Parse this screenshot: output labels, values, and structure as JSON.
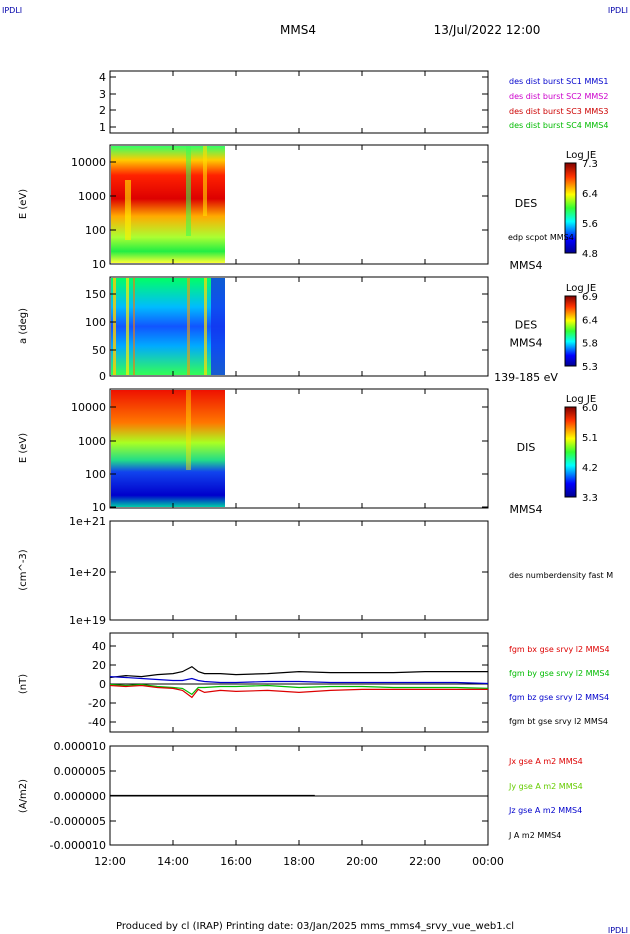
{
  "corner_logo": "IPDLI",
  "header": {
    "spacecraft": "MMS4",
    "datetime": "13/Jul/2022 12:00"
  },
  "footer": {
    "text": "Produced by cl (IRAP)   Printing date: 03/Jan/2025   mms_mms4_srvy_vue_web1.cl"
  },
  "time_axis": {
    "ticks": [
      "12:00",
      "14:00",
      "16:00",
      "18:00",
      "20:00",
      "22:00",
      "00:00"
    ]
  },
  "chart_data": [
    {
      "type": "line",
      "ylim": [
        0.5,
        4.5
      ],
      "yticks": [
        "4",
        "3",
        "2",
        "1"
      ],
      "legend": [
        {
          "name": "des dist burst SC1 MMS1",
          "color": "#0000cc"
        },
        {
          "name": "des dist burst SC2 MMS2",
          "color": "#cc00cc"
        },
        {
          "name": "des dist burst SC3 MMS3",
          "color": "#cc0000"
        },
        {
          "name": "des dist burst SC4 MMS4",
          "color": "#00bb00"
        }
      ]
    },
    {
      "type": "heatmap",
      "ylabel": "E (eV)",
      "yticks": [
        "10000",
        "1000",
        "100",
        "10"
      ],
      "instrument": "DES",
      "trace_label": "edp scpot MMS4",
      "bottom_label": "MMS4",
      "colorbar": {
        "title": "Log JE",
        "ticks": [
          "7.3",
          "6.4",
          "5.6",
          "4.8"
        ]
      }
    },
    {
      "type": "heatmap",
      "ylabel": "a (deg)",
      "yticks": [
        "150",
        "100",
        "50",
        "0"
      ],
      "instrument": "DES",
      "spacecraft": "MMS4",
      "bottom_label": "139-185 eV",
      "colorbar": {
        "title": "Log JE",
        "ticks": [
          "6.9",
          "6.4",
          "5.8",
          "5.3"
        ]
      }
    },
    {
      "type": "heatmap",
      "ylabel": "E (eV)",
      "yticks": [
        "10000",
        "1000",
        "100",
        "10"
      ],
      "instrument": "DIS",
      "bottom_label": "MMS4",
      "colorbar": {
        "title": "Log JE",
        "ticks": [
          "6.0",
          "5.1",
          "4.2",
          "3.3"
        ]
      }
    },
    {
      "type": "line",
      "ylabel": "(cm^-3)",
      "yticks": [
        "1e+21",
        "1e+20",
        "1e+19"
      ],
      "legend": [
        {
          "name": "des numberdensity fast M",
          "color": "#000000"
        }
      ]
    },
    {
      "type": "line",
      "ylabel": "(nT)",
      "ylim": [
        -50,
        50
      ],
      "yticks": [
        "40",
        "20",
        "0",
        "-20",
        "-40"
      ],
      "legend": [
        {
          "name": "fgm bx gse srvy l2 MMS4",
          "color": "#dd0000"
        },
        {
          "name": "fgm by gse srvy l2 MMS4",
          "color": "#00bb00"
        },
        {
          "name": "fgm bz gse srvy l2 MMS4",
          "color": "#0000cc"
        },
        {
          "name": "fgm bt gse srvy l2 MMS4",
          "color": "#000000"
        }
      ],
      "series": [
        {
          "name": "fgm bt gse srvy l2 MMS4",
          "x": [
            12.0,
            12.5,
            13.0,
            13.5,
            14.0,
            14.3,
            14.6,
            14.8,
            15.0,
            15.5,
            16.0,
            17.0,
            18.0,
            19.0,
            20.0,
            21.0,
            22.0,
            23.0,
            24.0
          ],
          "values": [
            5,
            7,
            6,
            8,
            9,
            11,
            16,
            11,
            9,
            9,
            8,
            9,
            11,
            10,
            10,
            10,
            11,
            11,
            11
          ]
        },
        {
          "name": "fgm bz gse srvy l2 MMS4",
          "x": [
            12.0,
            12.5,
            13.0,
            13.5,
            14.0,
            14.3,
            14.6,
            14.8,
            15.0,
            15.5,
            16.0,
            17.0,
            18.0,
            19.0,
            20.0,
            21.0,
            22.0,
            23.0,
            24.0
          ],
          "values": [
            6,
            5,
            4,
            3,
            2,
            2,
            4,
            2,
            1,
            0,
            0,
            1,
            1,
            0,
            0,
            0,
            0,
            0,
            -1
          ]
        },
        {
          "name": "fgm by gse srvy l2 MMS4",
          "x": [
            12.0,
            12.5,
            13.0,
            13.5,
            14.0,
            14.3,
            14.6,
            14.8,
            15.0,
            15.5,
            16.0,
            17.0,
            18.0,
            19.0,
            20.0,
            21.0,
            22.0,
            23.0,
            24.0
          ],
          "values": [
            -2,
            -3,
            -2,
            -4,
            -5,
            -6,
            -12,
            -5,
            -5,
            -4,
            -4,
            -3,
            -5,
            -4,
            -4,
            -5,
            -5,
            -5,
            -6
          ]
        },
        {
          "name": "fgm bx gse srvy l2 MMS4",
          "x": [
            12.0,
            12.5,
            13.0,
            13.5,
            14.0,
            14.3,
            14.6,
            14.8,
            15.0,
            15.5,
            16.0,
            17.0,
            18.0,
            19.0,
            20.0,
            21.0,
            22.0,
            23.0,
            24.0
          ],
          "values": [
            -3,
            -4,
            -3,
            -5,
            -6,
            -8,
            -15,
            -7,
            -10,
            -8,
            -9,
            -8,
            -10,
            -8,
            -7,
            -7,
            -7,
            -7,
            -7
          ]
        }
      ]
    },
    {
      "type": "line",
      "ylabel": "(A/m2)",
      "ylim": [
        -1e-05,
        1e-05
      ],
      "yticks": [
        "0.000010",
        "0.000005",
        "0.000000",
        "-0.000005",
        "-0.000010"
      ],
      "legend": [
        {
          "name": "Jx gse A m2 MMS4",
          "color": "#dd0000"
        },
        {
          "name": "Jy gse A m2 MMS4",
          "color": "#66cc00"
        },
        {
          "name": "Jz gse A m2 MMS4",
          "color": "#0000cc"
        },
        {
          "name": "J A m2 MMS4",
          "color": "#000000"
        }
      ],
      "series": [
        {
          "name": "J A m2 MMS4",
          "x": [
            12.0,
            13.0,
            14.0,
            15.0,
            16.0,
            17.0,
            18.5
          ],
          "values": [
            0,
            0,
            0,
            0,
            0,
            0,
            0
          ]
        }
      ]
    }
  ]
}
